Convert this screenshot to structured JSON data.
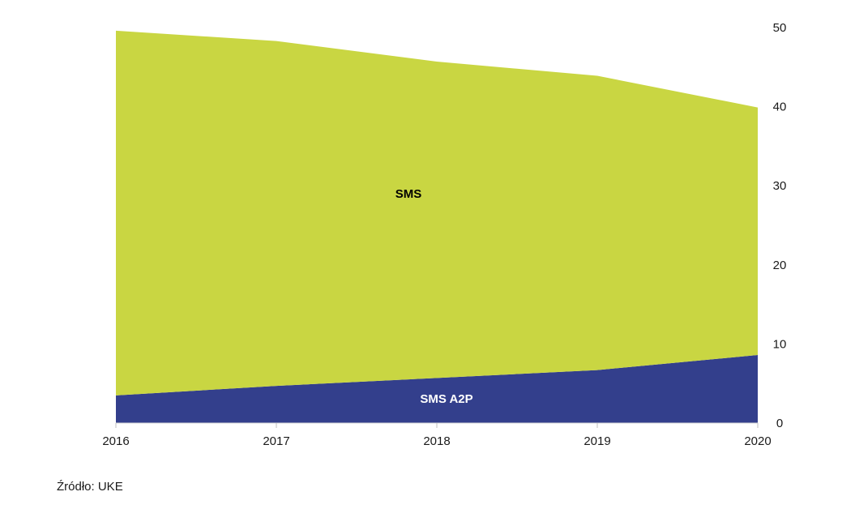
{
  "chart_data": {
    "type": "area",
    "stacked": true,
    "x": [
      "2016",
      "2017",
      "2018",
      "2019",
      "2020"
    ],
    "series": [
      {
        "name": "SMS A2P",
        "values": [
          3.5,
          4.7,
          5.7,
          6.7,
          8.6
        ],
        "color": "#333f8c",
        "label_color": "#ffffff"
      },
      {
        "name": "SMS",
        "values": [
          46.1,
          43.6,
          40.0,
          37.2,
          31.3
        ],
        "color": "#c9d642",
        "label_color": "#000000"
      }
    ],
    "ylim": [
      0,
      50
    ],
    "yticks": [
      "0",
      "10",
      "20",
      "30",
      "40",
      "50"
    ],
    "y_axis_position": "right",
    "grid": false,
    "legend": "none (series labelled inside areas)"
  },
  "source": "Źródło: UKE"
}
